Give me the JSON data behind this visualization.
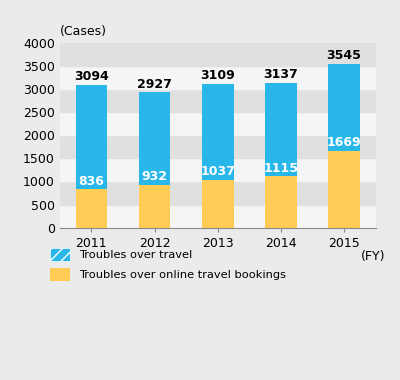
{
  "years": [
    "2011",
    "2012",
    "2013",
    "2014",
    "2015"
  ],
  "total_values": [
    3094,
    2927,
    3109,
    3137,
    3545
  ],
  "online_values": [
    836,
    932,
    1037,
    1115,
    1669
  ],
  "travel_values": [
    2258,
    1995,
    2072,
    2022,
    1876
  ],
  "bar_color_online": "#FFCC55",
  "bar_color_travel": "#29B6E8",
  "background_color": "#ebebeb",
  "stripe_light": "#f5f5f5",
  "stripe_dark": "#e0e0e0",
  "ylabel": "(Cases)",
  "xlabel": "(FY)",
  "ylim": [
    0,
    4000
  ],
  "yticks": [
    0,
    500,
    1000,
    1500,
    2000,
    2500,
    3000,
    3500,
    4000
  ],
  "legend_travel": "Troubles over travel",
  "legend_online": "Troubles over online travel bookings",
  "label_fontsize": 9,
  "tick_fontsize": 9,
  "bar_width": 0.5
}
